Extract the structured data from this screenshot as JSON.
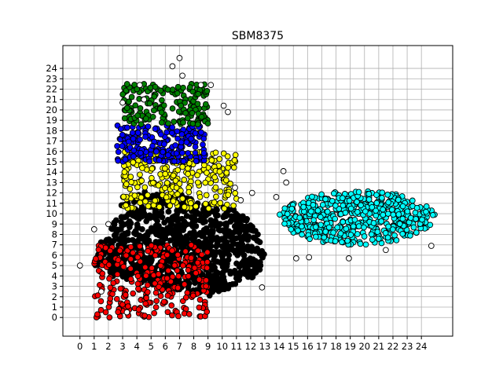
{
  "chart_data": {
    "type": "scatter",
    "title": "SBM8375",
    "xlabel": "",
    "ylabel": "",
    "xlim": [
      -1.2,
      26.2
    ],
    "ylim": [
      -1.8,
      26.2
    ],
    "x_ticks": [
      "0",
      "1",
      "2",
      "3",
      "4",
      "5",
      "6",
      "7",
      "8",
      "9",
      "10",
      "11",
      "12",
      "13",
      "14",
      "15",
      "16",
      "17",
      "18",
      "19",
      "20",
      "21",
      "22",
      "23",
      "24"
    ],
    "y_ticks": [
      "0",
      "1",
      "2",
      "3",
      "4",
      "5",
      "6",
      "7",
      "8",
      "9",
      "10",
      "11",
      "12",
      "13",
      "14",
      "15",
      "16",
      "17",
      "18",
      "19",
      "20",
      "21",
      "22",
      "23",
      "24"
    ],
    "grid": true,
    "legend": "none",
    "marker": "circle",
    "marker_edge_color": "#000000",
    "series": [
      {
        "color": "#000000",
        "region": {
          "type": "poly",
          "points": [
            [
              1,
              5
            ],
            [
              1.5,
              7.5
            ],
            [
              2.5,
              9.5
            ],
            [
              3,
              11.5
            ],
            [
              4.5,
              12.2
            ],
            [
              7,
              12
            ],
            [
              9,
              11
            ],
            [
              11,
              10.5
            ],
            [
              12.5,
              8.5
            ],
            [
              13,
              6
            ],
            [
              12.5,
              4
            ],
            [
              11,
              3
            ],
            [
              9,
              2
            ],
            [
              7,
              2.5
            ],
            [
              4,
              3.5
            ],
            [
              2,
              4
            ]
          ]
        },
        "count": 950
      },
      {
        "color": "#ff0000",
        "region": {
          "type": "rect",
          "x": [
            1,
            9
          ],
          "y": [
            0,
            7
          ]
        },
        "count": 260
      },
      {
        "color": "#ffff00",
        "region": {
          "type": "rect",
          "x": [
            3,
            11
          ],
          "y": [
            10.5,
            16
          ]
        },
        "count": 280
      },
      {
        "color": "#0000ff",
        "region": {
          "type": "rect",
          "x": [
            2.5,
            8.8
          ],
          "y": [
            15,
            18.5
          ]
        },
        "count": 200
      },
      {
        "color": "#008000",
        "region": {
          "type": "rect",
          "x": [
            3,
            9
          ],
          "y": [
            18.6,
            22.5
          ]
        },
        "count": 170
      },
      {
        "color": "#00ffff",
        "region": {
          "type": "ellipse",
          "cx": 19.5,
          "cy": 9.6,
          "rx": 5.5,
          "ry": 2.6
        },
        "count": 520
      },
      {
        "color": "#ffffff",
        "region": {
          "type": "scatter",
          "x": [
            0,
            1,
            1.5,
            2,
            3,
            3.3,
            4.2,
            4.5,
            6.5,
            7.2,
            8.5,
            9.2,
            10.1,
            10.4,
            10.9,
            11.3,
            12.1,
            12.8,
            13.8,
            14.3,
            14.5,
            15.2,
            16.1,
            18.9,
            21.5,
            24.7,
            7
          ],
          "y": [
            5,
            8.5,
            2.5,
            9,
            20.7,
            0.5,
            22.4,
            21,
            24.2,
            23.3,
            22.4,
            22.4,
            20.4,
            19.8,
            12.5,
            11.3,
            12,
            2.9,
            11.6,
            14.1,
            13,
            5.7,
            5.8,
            5.7,
            6.5,
            6.9,
            25
          ]
        },
        "count": 27
      }
    ]
  }
}
